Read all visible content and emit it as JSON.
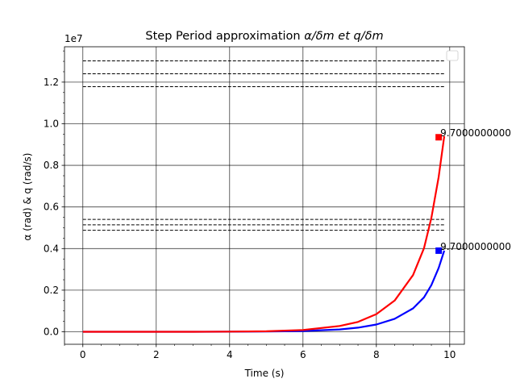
{
  "chart_data": {
    "type": "line",
    "title_prefix": "Step Period approximation ",
    "title_math": "α/δm et q/δm",
    "xlabel": "Time (s)",
    "ylabel": "α (rad) & q (rad/s)",
    "y_offset_label": "1e7",
    "xlim": [
      -0.5,
      10.4
    ],
    "ylim": [
      -0.06,
      1.37
    ],
    "y_unit_scale": 10000000,
    "x_ticks": [
      0,
      2,
      4,
      6,
      8,
      10
    ],
    "x_tick_labels": [
      "0",
      "2",
      "4",
      "6",
      "8",
      "10"
    ],
    "y_ticks": [
      0.0,
      0.2,
      0.4,
      0.6,
      0.8,
      1.0,
      1.2
    ],
    "y_tick_labels": [
      "0.0",
      "0.2",
      "0.4",
      "0.6",
      "0.8",
      "1.0",
      "1.2"
    ],
    "grid": true,
    "legend": "upper right (empty)",
    "series": [
      {
        "color": "#ff0000",
        "x": [
          0,
          1,
          2,
          3,
          4,
          5,
          6,
          7,
          7.5,
          8,
          8.5,
          9,
          9.3,
          9.5,
          9.7,
          9.85
        ],
        "y": [
          0.0,
          0.0,
          0.0,
          0.0002,
          0.0008,
          0.0024,
          0.0086,
          0.0279,
          0.0473,
          0.0851,
          0.1501,
          0.2726,
          0.4021,
          0.5469,
          0.7444,
          0.94
        ]
      },
      {
        "color": "#0000ff",
        "x": [
          0,
          1,
          2,
          3,
          4,
          5,
          6,
          7,
          7.5,
          8,
          8.5,
          9,
          9.3,
          9.5,
          9.7,
          9.85
        ],
        "y": [
          0.0,
          0.0,
          0.0,
          0.0001,
          0.0004,
          0.0011,
          0.0036,
          0.0115,
          0.0198,
          0.035,
          0.0624,
          0.1126,
          0.1655,
          0.2242,
          0.307,
          0.39
        ]
      }
    ],
    "markers": [
      {
        "x": 9.7,
        "y": 0.935,
        "color": "#ff0000",
        "label": "9.7000000000"
      },
      {
        "x": 9.7,
        "y": 0.39,
        "color": "#0000ff",
        "label": "9.7000000000"
      }
    ],
    "hlines": [
      {
        "y": 1.302,
        "x0": 0,
        "x1": 9.85
      },
      {
        "y": 1.24,
        "x0": 0,
        "x1": 9.85
      },
      {
        "y": 1.178,
        "x0": 0,
        "x1": 9.85
      },
      {
        "y": 0.54,
        "x0": 0,
        "x1": 9.85
      },
      {
        "y": 0.514,
        "x0": 0,
        "x1": 9.85
      },
      {
        "y": 0.488,
        "x0": 0,
        "x1": 9.85
      }
    ]
  }
}
